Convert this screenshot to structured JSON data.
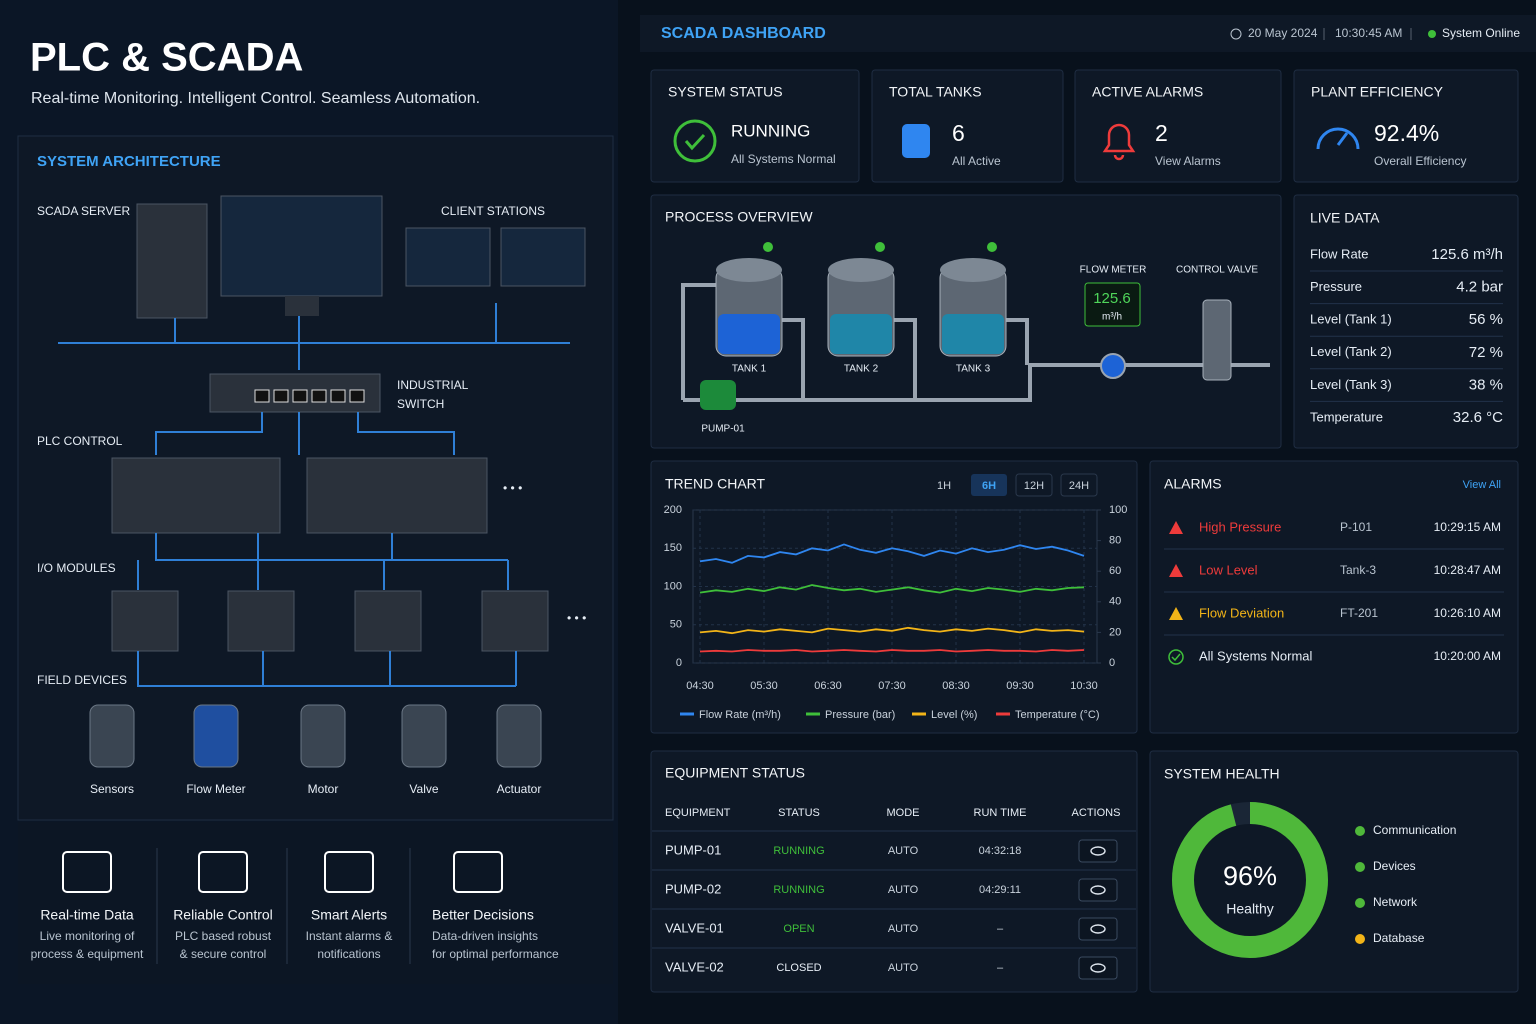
{
  "header": {
    "title": "PLC & SCADA",
    "subtitle": "Real-time Monitoring. Intelligent Control. Seamless Automation."
  },
  "architecture": {
    "title": "SYSTEM ARCHITECTURE",
    "scada_server": "SCADA SERVER",
    "client_stations": "CLIENT STATIONS",
    "switch": [
      "INDUSTRIAL",
      "SWITCH"
    ],
    "plc": "PLC CONTROL",
    "io": "I/O MODULES",
    "field": "FIELD DEVICES",
    "devices": [
      "Sensors",
      "Flow Meter",
      "Motor",
      "Valve",
      "Actuator"
    ]
  },
  "features": [
    {
      "title": "Real-time Data",
      "lines": [
        "Live monitoring of",
        "process & equipment"
      ]
    },
    {
      "title": "Reliable Control",
      "lines": [
        "PLC based robust",
        "& secure control"
      ]
    },
    {
      "title": "Smart Alerts",
      "lines": [
        "Instant alarms &",
        "notifications"
      ]
    },
    {
      "title": "Better Decisions",
      "lines": [
        "Data-driven insights",
        "for optimal performance"
      ]
    }
  ],
  "dashboard": {
    "title": "SCADA DASHBOARD",
    "date": "20 May 2024",
    "time": "10:30:45 AM",
    "status": "System Online"
  },
  "cards": [
    {
      "title": "SYSTEM STATUS",
      "value": "RUNNING",
      "note": "All Systems Normal"
    },
    {
      "title": "TOTAL TANKS",
      "value": "6",
      "note": "All Active"
    },
    {
      "title": "ACTIVE ALARMS",
      "value": "2",
      "note": "View Alarms"
    },
    {
      "title": "PLANT EFFICIENCY",
      "value": "92.4%",
      "note": "Overall Efficiency"
    }
  ],
  "process": {
    "title": "PROCESS OVERVIEW",
    "tanks": [
      "TANK 1",
      "TANK 2",
      "TANK 3"
    ],
    "pump": "PUMP-01",
    "flow_meter": "FLOW METER",
    "flow_value": "125.6",
    "flow_unit": "m³/h",
    "valve": "CONTROL VALVE"
  },
  "live_data": {
    "title": "LIVE DATA",
    "rows": [
      [
        "Flow Rate",
        "125.6 m³/h"
      ],
      [
        "Pressure",
        "4.2 bar"
      ],
      [
        "Level (Tank 1)",
        "56 %"
      ],
      [
        "Level (Tank 2)",
        "72 %"
      ],
      [
        "Level (Tank 3)",
        "38 %"
      ],
      [
        "Temperature",
        "32.6 °C"
      ]
    ]
  },
  "chart_data": {
    "type": "line",
    "title": "TREND CHART",
    "ranges": [
      "1H",
      "6H",
      "12H",
      "24H"
    ],
    "active_range": 1,
    "x": [
      "04:30",
      null,
      null,
      null,
      "05:30",
      null,
      null,
      null,
      "06:30",
      null,
      null,
      null,
      "07:30",
      null,
      null,
      null,
      "08:30",
      null,
      null,
      null,
      "09:30",
      null,
      null,
      null,
      "10:30"
    ],
    "ylim": [
      0,
      200
    ],
    "yticks": [
      0,
      50,
      100,
      150,
      200
    ],
    "y2lim": [
      0,
      100
    ],
    "y2ticks": [
      0,
      20,
      40,
      60,
      80,
      100
    ],
    "grid": true,
    "series": [
      {
        "name": "Flow Rate (m³/h)",
        "color": "#2f86f0",
        "values": [
          133,
          136,
          131,
          140,
          138,
          145,
          142,
          150,
          147,
          155,
          148,
          144,
          150,
          146,
          140,
          147,
          143,
          150,
          145,
          148,
          154,
          149,
          152,
          147,
          140
        ]
      },
      {
        "name": "Pressure (bar)",
        "color": "#3fbf3a",
        "values": [
          92,
          95,
          93,
          97,
          94,
          99,
          96,
          102,
          98,
          95,
          97,
          93,
          96,
          99,
          95,
          92,
          97,
          94,
          98,
          96,
          93,
          97,
          95,
          98,
          99
        ]
      },
      {
        "name": "Level (%)",
        "color": "#f2b418",
        "values": [
          40,
          42,
          39,
          43,
          41,
          44,
          42,
          40,
          45,
          43,
          41,
          44,
          42,
          46,
          43,
          41,
          44,
          42,
          45,
          43,
          40,
          44,
          42,
          43,
          41
        ]
      },
      {
        "name": "Temperature (°C)",
        "color": "#ee3b3b",
        "values": [
          15,
          16,
          15,
          17,
          16,
          16,
          17,
          15,
          16,
          17,
          16,
          15,
          17,
          16,
          16,
          17,
          15,
          16,
          17,
          16,
          16,
          15,
          17,
          16,
          17
        ]
      }
    ]
  },
  "alarms": {
    "title": "ALARMS",
    "link": "View All",
    "rows": [
      {
        "name": "High Pressure",
        "tag": "P-101",
        "time": "10:29:15 AM",
        "color": "#ee3b3b"
      },
      {
        "name": "Low Level",
        "tag": "Tank-3",
        "time": "10:28:47 AM",
        "color": "#ee3b3b"
      },
      {
        "name": "Flow Deviation",
        "tag": "FT-201",
        "time": "10:26:10 AM",
        "color": "#f2b418"
      },
      {
        "name": "All Systems Normal",
        "time": "10:20:00 AM",
        "color": "#3fbf3a"
      }
    ]
  },
  "equipment": {
    "title": "EQUIPMENT STATUS",
    "columns": [
      "EQUIPMENT",
      "STATUS",
      "MODE",
      "RUN TIME",
      "ACTIONS"
    ],
    "rows": [
      {
        "cells": [
          "PUMP-01",
          "RUNNING",
          "AUTO",
          "04:32:18"
        ],
        "color": "#3fbf3a"
      },
      {
        "cells": [
          "PUMP-02",
          "RUNNING",
          "AUTO",
          "04:29:11"
        ],
        "color": "#3fbf3a"
      },
      {
        "cells": [
          "VALVE-01",
          "OPEN",
          "AUTO",
          "–"
        ],
        "color": "#3fbf3a"
      },
      {
        "cells": [
          "VALVE-02",
          "CLOSED",
          "AUTO",
          "–"
        ],
        "color": "#e6edf5"
      }
    ]
  },
  "system_health": {
    "title": "SYSTEM HEALTH",
    "value": 96,
    "value_label": "96%",
    "status": "Healthy",
    "color": "#4fb83a",
    "legend": [
      {
        "name": "Communication",
        "color": "#4fb83a"
      },
      {
        "name": "Devices",
        "color": "#4fb83a"
      },
      {
        "name": "Network",
        "color": "#4fb83a"
      },
      {
        "name": "Database",
        "color": "#f2b418"
      }
    ]
  }
}
